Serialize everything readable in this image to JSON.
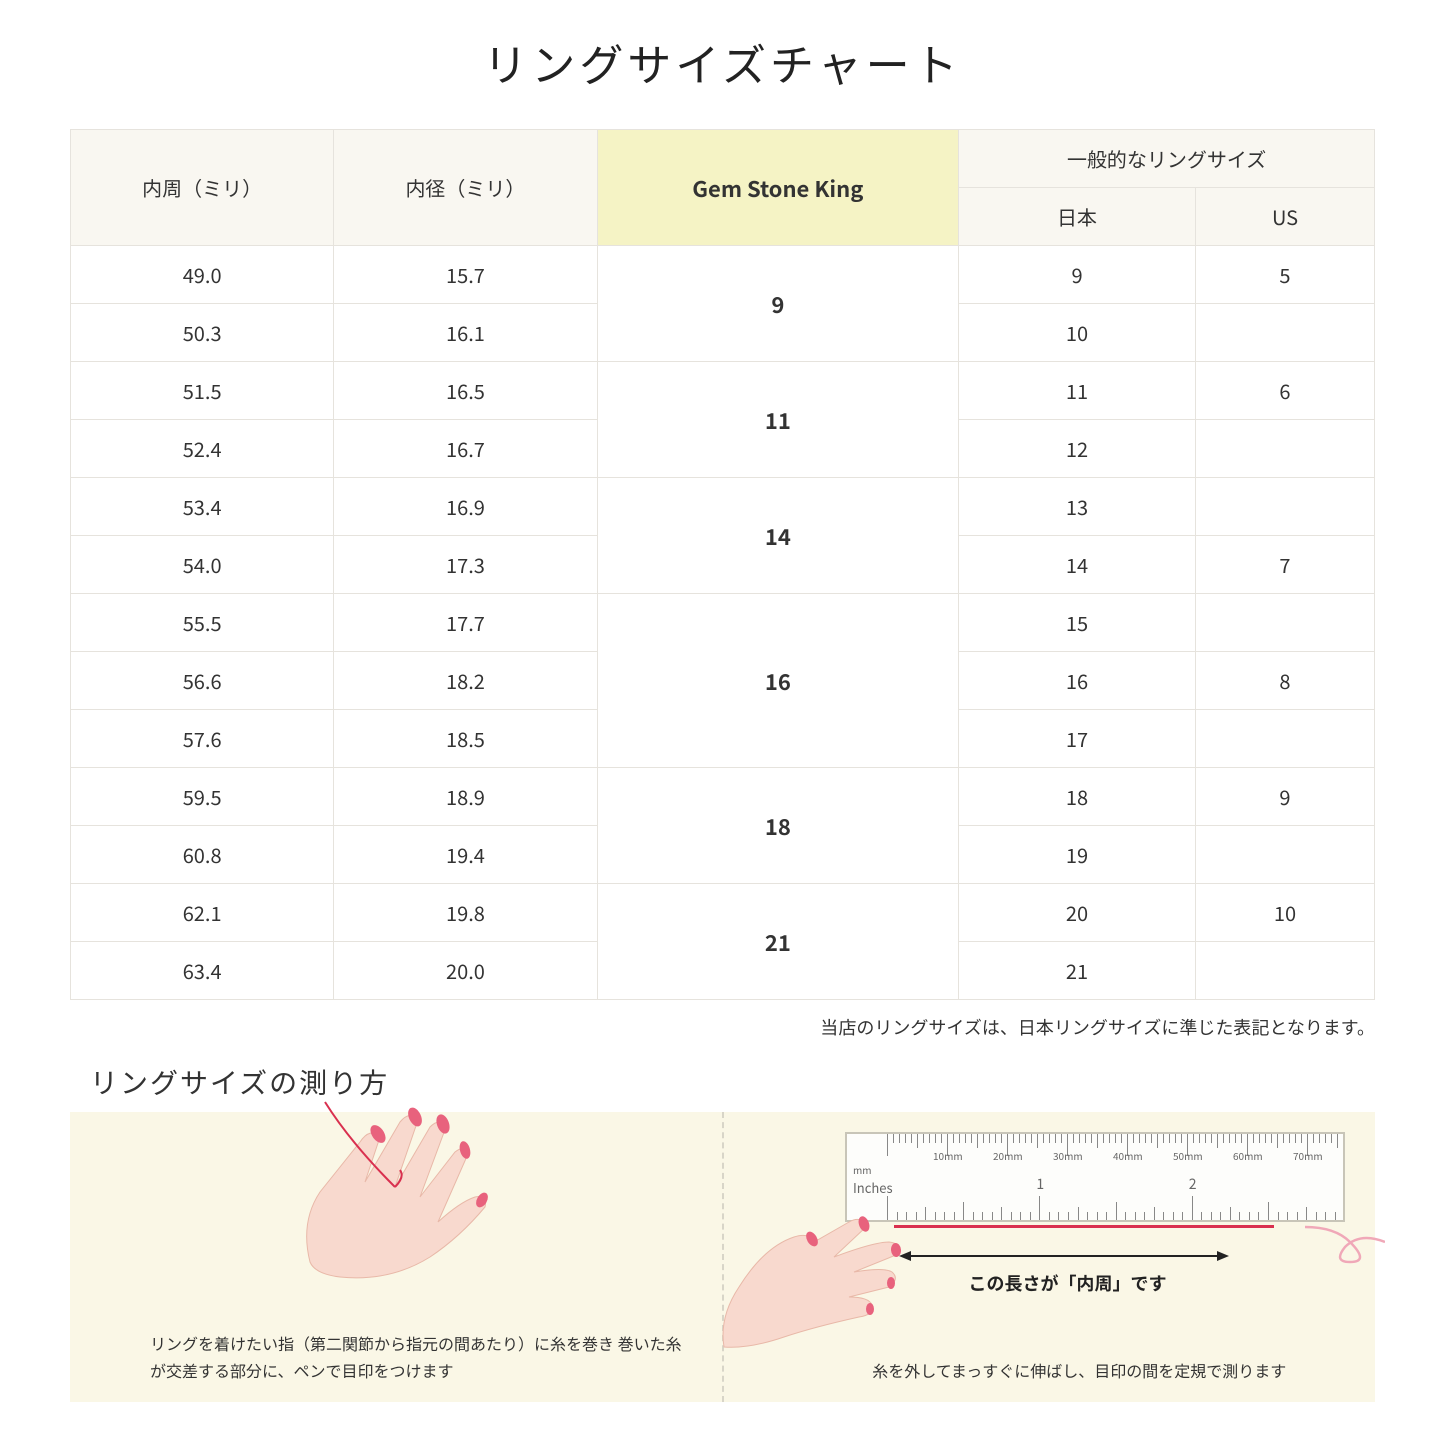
{
  "title": "リングサイズチャート",
  "headers": {
    "circumference": "内周（ミリ）",
    "diameter": "内径（ミリ）",
    "gsk": "Gem Stone King",
    "common": "一般的なリングサイズ",
    "japan": "日本",
    "us": "US"
  },
  "groups": [
    {
      "gsk": "9",
      "rows": [
        {
          "c": "49.0",
          "d": "15.7",
          "jp": "9",
          "us": "5"
        },
        {
          "c": "50.3",
          "d": "16.1",
          "jp": "10",
          "us": ""
        }
      ]
    },
    {
      "gsk": "11",
      "rows": [
        {
          "c": "51.5",
          "d": "16.5",
          "jp": "11",
          "us": "6"
        },
        {
          "c": "52.4",
          "d": "16.7",
          "jp": "12",
          "us": ""
        }
      ]
    },
    {
      "gsk": "14",
      "rows": [
        {
          "c": "53.4",
          "d": "16.9",
          "jp": "13",
          "us": ""
        },
        {
          "c": "54.0",
          "d": "17.3",
          "jp": "14",
          "us": "7"
        }
      ]
    },
    {
      "gsk": "16",
      "rows": [
        {
          "c": "55.5",
          "d": "17.7",
          "jp": "15",
          "us": ""
        },
        {
          "c": "56.6",
          "d": "18.2",
          "jp": "16",
          "us": "8"
        },
        {
          "c": "57.6",
          "d": "18.5",
          "jp": "17",
          "us": ""
        }
      ]
    },
    {
      "gsk": "18",
      "rows": [
        {
          "c": "59.5",
          "d": "18.9",
          "jp": "18",
          "us": "9"
        },
        {
          "c": "60.8",
          "d": "19.4",
          "jp": "19",
          "us": ""
        }
      ]
    },
    {
      "gsk": "21",
      "rows": [
        {
          "c": "62.1",
          "d": "19.8",
          "jp": "20",
          "us": "10"
        },
        {
          "c": "63.4",
          "d": "20.0",
          "jp": "21",
          "us": ""
        }
      ]
    }
  ],
  "note": "当店のリングサイズは、日本リングサイズに準じた表記となります。",
  "measure_title": "リングサイズの測り方",
  "measure_left_caption": "リングを着けたい指（第二関節から指元の間あたり）に糸を巻き\n巻いた糸が交差する部分に、ペンで目印をつけます",
  "measure_right_caption": "糸を外してまっすぐに伸ばし、目印の間を定規で測ります",
  "arrow_label": "この長さが「内周」です",
  "ruler": {
    "mm_label": "mm",
    "inches_label": "Inches",
    "mm_ticks": [
      "10mm",
      "20mm",
      "30mm",
      "40mm",
      "50mm",
      "60mm",
      "70mm"
    ],
    "inch_marks": [
      "1",
      "2"
    ]
  },
  "colors": {
    "header_bg": "#f9f7f1",
    "gsk_bg": "#f5f3c5",
    "border": "#e6e3dd",
    "measure_bg": "#faf7e6",
    "thread": "#d9304f",
    "skin": "#f8d9ce",
    "nail": "#e8627d"
  }
}
